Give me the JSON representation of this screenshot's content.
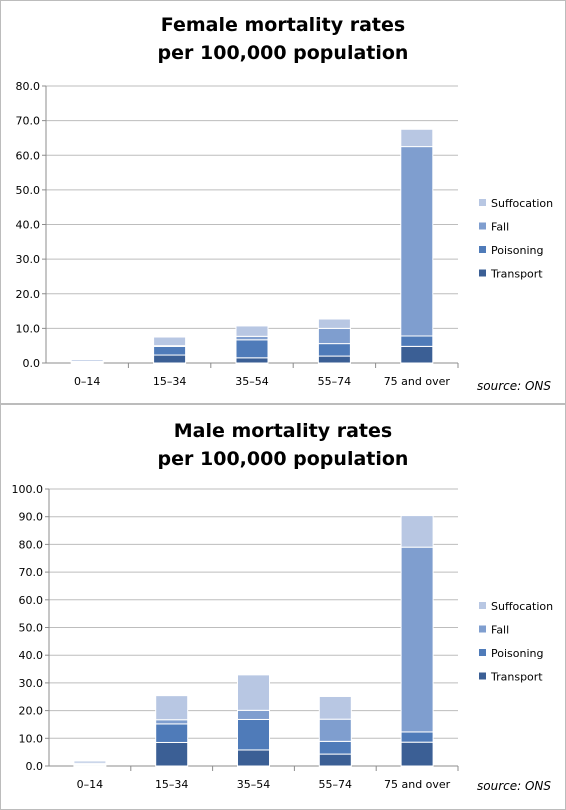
{
  "colors": {
    "Transport": "#3b5f95",
    "Poisoning": "#4f7bb9",
    "Fall": "#7f9ecf",
    "Suffocation": "#b8c7e3",
    "grid": "#bdbdbd",
    "axis": "#8c8c8c"
  },
  "chart_data": [
    {
      "type": "bar",
      "stacked": true,
      "title": [
        "Female mortality rates",
        "per 100,000 population"
      ],
      "categories": [
        "0–14",
        "15–34",
        "35–54",
        "55–74",
        "75 and over"
      ],
      "series": [
        {
          "name": "Transport",
          "values": [
            0.2,
            2.3,
            1.5,
            2.0,
            4.8
          ]
        },
        {
          "name": "Poisoning",
          "values": [
            0.1,
            2.5,
            5.2,
            3.6,
            3.0
          ]
        },
        {
          "name": "Fall",
          "values": [
            0.2,
            0.2,
            1.0,
            4.4,
            54.7
          ]
        },
        {
          "name": "Suffocation",
          "values": [
            0.5,
            2.5,
            3.0,
            2.7,
            5.0
          ]
        }
      ],
      "ylim": [
        0,
        80
      ],
      "yticks": [
        "0.0",
        "10.0",
        "20.0",
        "30.0",
        "40.0",
        "50.0",
        "60.0",
        "70.0",
        "80.0"
      ],
      "grid": true,
      "legend_position": "right",
      "source": "source: ONS"
    },
    {
      "type": "bar",
      "stacked": true,
      "title": [
        "Male mortality rates",
        "per 100,000 population"
      ],
      "categories": [
        "0–14",
        "15–34",
        "35–54",
        "55–74",
        "75 and over"
      ],
      "series": [
        {
          "name": "Transport",
          "values": [
            0.4,
            8.5,
            5.8,
            4.3,
            8.6
          ]
        },
        {
          "name": "Poisoning",
          "values": [
            0.2,
            6.7,
            11.0,
            4.6,
            3.7
          ]
        },
        {
          "name": "Fall",
          "values": [
            0.4,
            1.5,
            3.3,
            8.0,
            66.7
          ]
        },
        {
          "name": "Suffocation",
          "values": [
            0.8,
            8.7,
            12.8,
            8.2,
            11.4
          ]
        }
      ],
      "ylim": [
        0,
        100
      ],
      "yticks": [
        "0.0",
        "10.0",
        "20.0",
        "30.0",
        "40.0",
        "50.0",
        "60.0",
        "70.0",
        "80.0",
        "90.0",
        "100.0"
      ],
      "grid": true,
      "legend_position": "right",
      "source": "source: ONS"
    }
  ]
}
